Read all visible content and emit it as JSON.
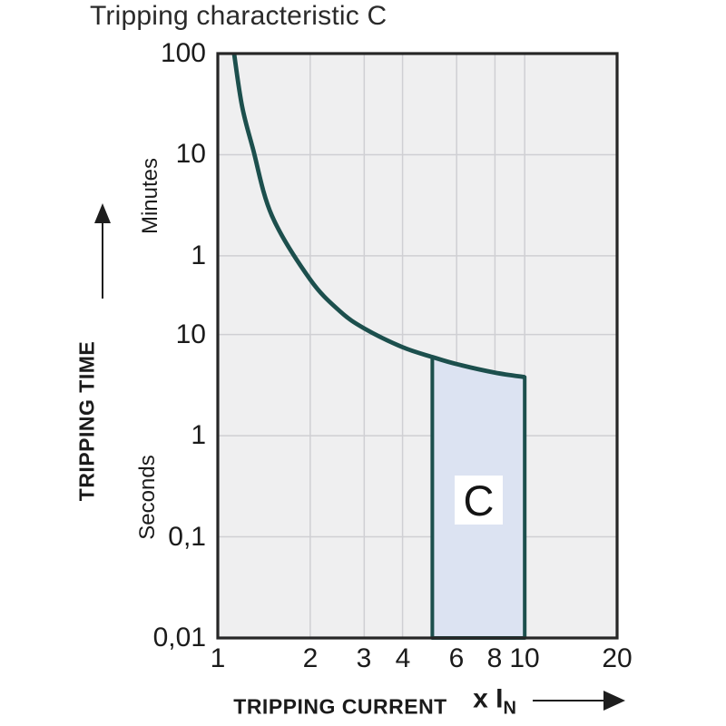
{
  "title": "Tripping characteristic C",
  "colors": {
    "curve": "#1c4f4d",
    "region_fill": "#dce3f2",
    "plot_background": "#efeff0",
    "grid": "#cfcfd3",
    "border": "#262626",
    "text": "#1b1b1b",
    "arrow": "#1e1e1e"
  },
  "y_axis": {
    "title": "TRIPPING TIME",
    "scale": "log",
    "units": [
      {
        "label": "Minutes"
      },
      {
        "label": "Seconds"
      }
    ],
    "ticks": [
      {
        "value_seconds": 6000,
        "label": "100"
      },
      {
        "value_seconds": 600,
        "label": "10"
      },
      {
        "value_seconds": 60,
        "label": "1"
      },
      {
        "value_seconds": 10,
        "label": "10"
      },
      {
        "value_seconds": 1,
        "label": "1"
      },
      {
        "value_seconds": 0.1,
        "label": "0,1"
      },
      {
        "value_seconds": 0.01,
        "label": "0,01"
      }
    ]
  },
  "x_axis": {
    "title": "TRIPPING CURRENT",
    "unit_prefix": "x I",
    "unit_sub": "N",
    "scale": "log",
    "ticks": [
      {
        "value": 1,
        "label": "1"
      },
      {
        "value": 2,
        "label": "2"
      },
      {
        "value": 3,
        "label": "3"
      },
      {
        "value": 4,
        "label": "4"
      },
      {
        "value": 6,
        "label": "6"
      },
      {
        "value": 8,
        "label": "8"
      },
      {
        "value": 10,
        "label": "10"
      },
      {
        "value": 20,
        "label": "20"
      }
    ]
  },
  "chart_data": {
    "type": "line",
    "title": "Tripping characteristic C",
    "xlabel": "TRIPPING CURRENT (x IN)",
    "ylabel": "TRIPPING TIME (minutes / seconds)",
    "x_scale": "log",
    "y_scale": "log",
    "x_range": [
      1,
      20
    ],
    "y_range_seconds": [
      0.01,
      6000
    ],
    "grid": true,
    "legend": "none",
    "gridlines": {
      "x_values": [
        2,
        3,
        4,
        6,
        8,
        10
      ],
      "t_values_seconds": [
        600,
        60,
        10,
        1,
        0.1
      ]
    },
    "series": [
      {
        "name": "tripping-limit-curve",
        "x_multiple_of_In": [
          1.13,
          1.2,
          1.3,
          1.5,
          2.0,
          2.5,
          3.0,
          4.0,
          5.0,
          6.0,
          8.0,
          10.0
        ],
        "t_seconds": [
          6000,
          1800,
          700,
          150,
          35,
          17,
          11.5,
          7.5,
          6.0,
          5.1,
          4.2,
          3.8
        ]
      }
    ],
    "region": {
      "label": "C",
      "x_range": [
        5,
        10
      ],
      "top_edge_x": [
        5,
        6,
        8,
        10
      ],
      "top_edge_t_seconds": [
        6.0,
        5.1,
        4.2,
        3.8
      ],
      "bottom_t_seconds": 0.01
    }
  }
}
